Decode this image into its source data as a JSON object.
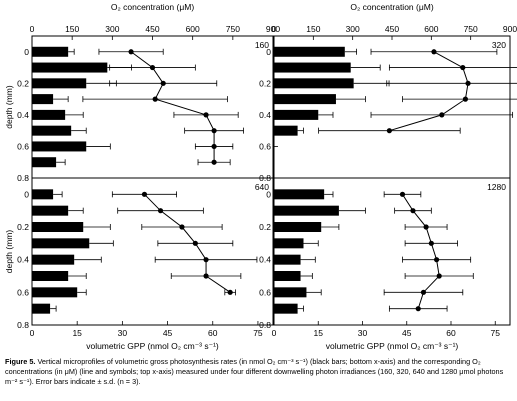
{
  "chart_data": [
    {
      "panel": "160",
      "type": "bar+line",
      "depth_mm": [
        0,
        0.1,
        0.2,
        0.3,
        0.4,
        0.5,
        0.6,
        0.7
      ],
      "gpp": [
        {
          "v": 12,
          "e": 2
        },
        {
          "v": 25,
          "e": 8
        },
        {
          "v": 18,
          "e": 10
        },
        {
          "v": 7,
          "e": 5
        },
        {
          "v": 11,
          "e": 6
        },
        {
          "v": 13,
          "e": 5
        },
        {
          "v": 18,
          "e": 8
        },
        {
          "v": 8,
          "e": 3
        }
      ],
      "o2": [
        {
          "d": 0,
          "v": 370,
          "e": 120
        },
        {
          "d": 0.1,
          "v": 450,
          "e": 160
        },
        {
          "d": 0.2,
          "v": 490,
          "e": 200
        },
        {
          "d": 0.3,
          "v": 460,
          "e": 270
        },
        {
          "d": 0.4,
          "v": 650,
          "e": 120
        },
        {
          "d": 0.5,
          "v": 680,
          "e": 110
        },
        {
          "d": 0.6,
          "v": 680,
          "e": 70
        },
        {
          "d": 0.7,
          "v": 680,
          "e": 60
        }
      ]
    },
    {
      "panel": "320",
      "type": "bar+line",
      "depth_mm": [
        0,
        0.1,
        0.2,
        0.3,
        0.4,
        0.5
      ],
      "gpp": [
        {
          "v": 24,
          "e": 4
        },
        {
          "v": 26,
          "e": 10
        },
        {
          "v": 27,
          "e": 12
        },
        {
          "v": 21,
          "e": 10
        },
        {
          "v": 15,
          "e": 5
        },
        {
          "v": 8,
          "e": 2
        }
      ],
      "o2": [
        {
          "d": 0,
          "v": 610,
          "e": 240
        },
        {
          "d": 0.1,
          "v": 720,
          "e": 280
        },
        {
          "d": 0.2,
          "v": 740,
          "e": 310
        },
        {
          "d": 0.3,
          "v": 730,
          "e": 240
        },
        {
          "d": 0.4,
          "v": 640,
          "e": 270
        },
        {
          "d": 0.5,
          "v": 440,
          "e": 270
        }
      ]
    },
    {
      "panel": "640",
      "type": "bar+line",
      "depth_mm": [
        0,
        0.1,
        0.2,
        0.3,
        0.4,
        0.5,
        0.6,
        0.7
      ],
      "gpp": [
        {
          "v": 7,
          "e": 3
        },
        {
          "v": 12,
          "e": 5
        },
        {
          "v": 17,
          "e": 9
        },
        {
          "v": 19,
          "e": 8
        },
        {
          "v": 14,
          "e": 9
        },
        {
          "v": 12,
          "e": 6
        },
        {
          "v": 15,
          "e": 3
        },
        {
          "v": 6,
          "e": 2
        }
      ],
      "o2": [
        {
          "d": 0,
          "v": 420,
          "e": 120
        },
        {
          "d": 0.1,
          "v": 480,
          "e": 160
        },
        {
          "d": 0.2,
          "v": 560,
          "e": 150
        },
        {
          "d": 0.3,
          "v": 610,
          "e": 140
        },
        {
          "d": 0.4,
          "v": 650,
          "e": 190
        },
        {
          "d": 0.5,
          "v": 650,
          "e": 130
        },
        {
          "d": 0.6,
          "v": 740,
          "e": 20
        }
      ]
    },
    {
      "panel": "1280",
      "type": "bar+line",
      "depth_mm": [
        0,
        0.1,
        0.2,
        0.3,
        0.4,
        0.5,
        0.6,
        0.7
      ],
      "gpp": [
        {
          "v": 17,
          "e": 3
        },
        {
          "v": 22,
          "e": 9
        },
        {
          "v": 16,
          "e": 6
        },
        {
          "v": 10,
          "e": 5
        },
        {
          "v": 9,
          "e": 5
        },
        {
          "v": 9,
          "e": 4
        },
        {
          "v": 11,
          "e": 5
        },
        {
          "v": 8,
          "e": 2
        }
      ],
      "o2": [
        {
          "d": 0,
          "v": 490,
          "e": 70
        },
        {
          "d": 0.1,
          "v": 530,
          "e": 70
        },
        {
          "d": 0.2,
          "v": 580,
          "e": 80
        },
        {
          "d": 0.3,
          "v": 600,
          "e": 100
        },
        {
          "d": 0.4,
          "v": 620,
          "e": 130
        },
        {
          "d": 0.5,
          "v": 630,
          "e": 130
        },
        {
          "d": 0.6,
          "v": 570,
          "e": 150
        },
        {
          "d": 0.7,
          "v": 550,
          "e": 110
        }
      ]
    }
  ],
  "axes": {
    "top_title": "O₂ concentration (μM)",
    "top_ticks": [
      0,
      150,
      300,
      450,
      600,
      750,
      900
    ],
    "o2_range": [
      0,
      900
    ],
    "bottom_title": "volumetric GPP (nmol O₂ cm⁻³ s⁻¹)",
    "bottom_ticks": [
      0,
      15,
      30,
      45,
      60,
      75
    ],
    "gpp_range": [
      0,
      80
    ],
    "depth_title": "depth (mm)",
    "depth_ticks": [
      "0",
      "0.2",
      "0.4",
      "0.6",
      "0.8"
    ],
    "depth_range": [
      -0.1,
      0.8
    ]
  },
  "caption": {
    "label": "Figure 5.",
    "text": "Vertical microprofiles of volumetric gross photosynthesis rates (in nmol O₂ cm⁻³ s⁻¹) (black bars; bottom x-axis) and the corresponding O₂ concentrations (in μM) (line and symbols; top x-axis) measured under four different downwelling photon irradiances (160, 320, 640 and 1280 μmol photons m⁻² s⁻¹). Error bars indicate ± s.d. (n = 3)."
  }
}
